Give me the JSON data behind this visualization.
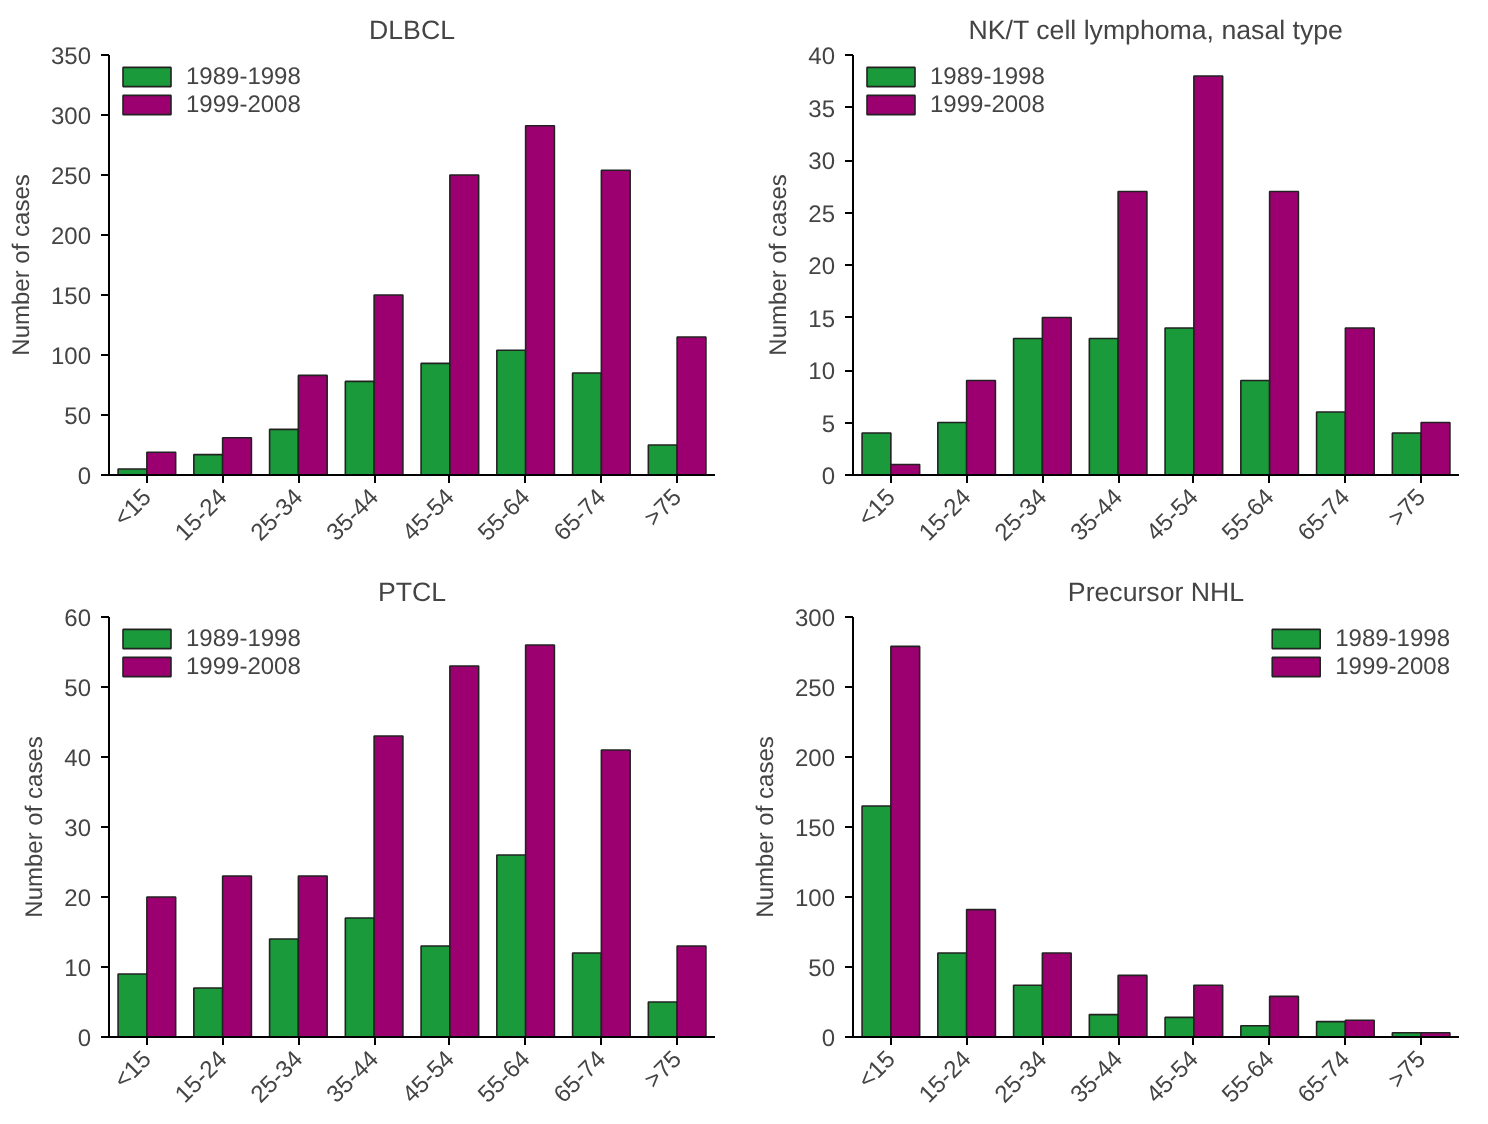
{
  "chart_data": [
    {
      "type": "bar",
      "title": "DLBCL",
      "ylabel": "Number of cases",
      "categories": [
        "<15",
        "15-24",
        "25-34",
        "35-44",
        "45-54",
        "55-64",
        "65-74",
        ">75"
      ],
      "ylim": [
        0,
        350
      ],
      "yticks": [
        0,
        50,
        100,
        150,
        200,
        250,
        300,
        350
      ],
      "grid": false,
      "legend": "top left",
      "series": [
        {
          "name": "1989-1998",
          "color": "#1a9a3a",
          "values": [
            5,
            17,
            38,
            78,
            93,
            104,
            85,
            25
          ]
        },
        {
          "name": "1999-2008",
          "color": "#9c0070",
          "values": [
            19,
            31,
            83,
            150,
            250,
            291,
            254,
            115
          ]
        }
      ]
    },
    {
      "type": "bar",
      "title": "NK/T cell lymphoma, nasal type",
      "ylabel": "Number of cases",
      "categories": [
        "<15",
        "15-24",
        "25-34",
        "35-44",
        "45-54",
        "55-64",
        "65-74",
        ">75"
      ],
      "ylim": [
        0,
        40
      ],
      "yticks": [
        0,
        5,
        10,
        15,
        20,
        25,
        30,
        35,
        40
      ],
      "grid": false,
      "legend": "top left",
      "series": [
        {
          "name": "1989-1998",
          "color": "#1a9a3a",
          "values": [
            4,
            5,
            13,
            13,
            14,
            9,
            6,
            4
          ]
        },
        {
          "name": "1999-2008",
          "color": "#9c0070",
          "values": [
            1,
            9,
            15,
            27,
            38,
            27,
            14,
            5
          ]
        }
      ]
    },
    {
      "type": "bar",
      "title": "PTCL",
      "ylabel": "Number of cases",
      "categories": [
        "<15",
        "15-24",
        "25-34",
        "35-44",
        "45-54",
        "55-64",
        "65-74",
        ">75"
      ],
      "ylim": [
        0,
        60
      ],
      "yticks": [
        0,
        10,
        20,
        30,
        40,
        50,
        60
      ],
      "grid": false,
      "legend": "top left",
      "series": [
        {
          "name": "1989-1998",
          "color": "#1a9a3a",
          "values": [
            9,
            7,
            14,
            17,
            13,
            26,
            12,
            5
          ]
        },
        {
          "name": "1999-2008",
          "color": "#9c0070",
          "values": [
            20,
            23,
            23,
            43,
            53,
            56,
            41,
            13
          ]
        }
      ]
    },
    {
      "type": "bar",
      "title": "Precursor NHL",
      "ylabel": "Number of cases",
      "categories": [
        "<15",
        "15-24",
        "25-34",
        "35-44",
        "45-54",
        "55-64",
        "65-74",
        ">75"
      ],
      "ylim": [
        0,
        300
      ],
      "yticks": [
        0,
        50,
        100,
        150,
        200,
        250,
        300
      ],
      "grid": false,
      "legend": "top right",
      "series": [
        {
          "name": "1989-1998",
          "color": "#1a9a3a",
          "values": [
            165,
            60,
            37,
            16,
            14,
            8,
            11,
            3
          ]
        },
        {
          "name": "1999-2008",
          "color": "#9c0070",
          "values": [
            279,
            91,
            60,
            44,
            37,
            29,
            12,
            3
          ]
        }
      ]
    }
  ]
}
